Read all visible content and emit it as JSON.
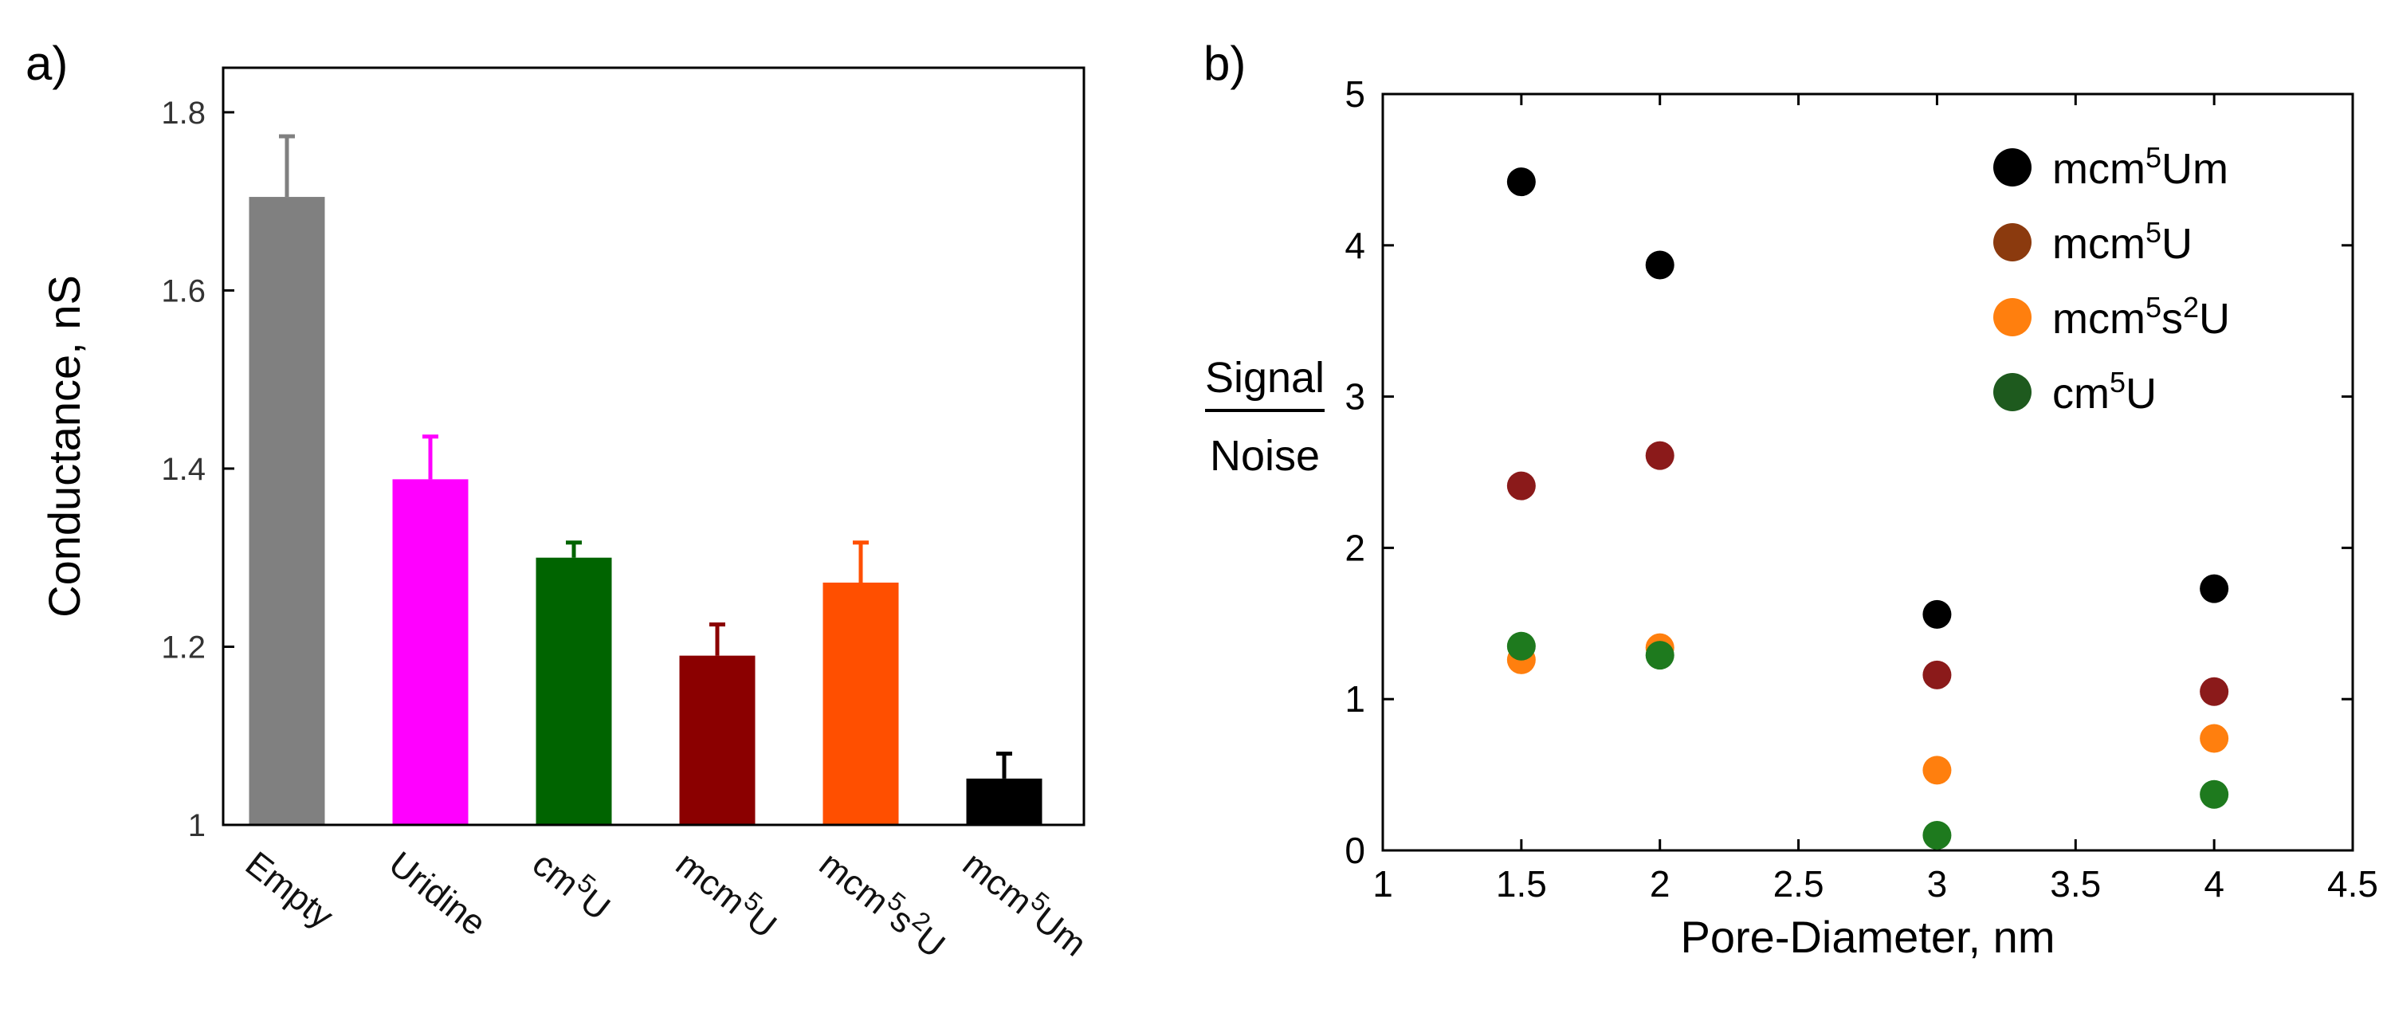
{
  "chart_data": [
    {
      "type": "bar",
      "panel_label": "a)",
      "title": "",
      "xlabel": "",
      "ylabel": "Conductance, nS",
      "ylim": [
        1.0,
        1.85
      ],
      "yticks": [
        {
          "value": 1.0,
          "label": "1"
        },
        {
          "value": 1.2,
          "label": "1.2"
        },
        {
          "value": 1.4,
          "label": "1.4"
        },
        {
          "value": 1.6,
          "label": "1.6"
        },
        {
          "value": 1.8,
          "label": "1.8"
        }
      ],
      "categories": [
        {
          "base": "Empty",
          "sup": "",
          "mid": "",
          "sup2": "",
          "tail": ""
        },
        {
          "base": "Uridine",
          "sup": "",
          "mid": "",
          "sup2": "",
          "tail": ""
        },
        {
          "base": "cm",
          "sup": "5",
          "mid": "U",
          "sup2": "",
          "tail": ""
        },
        {
          "base": "mcm",
          "sup": "5",
          "mid": "U",
          "sup2": "",
          "tail": ""
        },
        {
          "base": "mcm",
          "sup": "5",
          "mid": "s",
          "sup2": "2",
          "tail": "U"
        },
        {
          "base": "mcm",
          "sup": "5",
          "mid": "Um",
          "sup2": "",
          "tail": ""
        }
      ],
      "values": [
        1.705,
        1.388,
        1.3,
        1.19,
        1.272,
        1.052
      ],
      "errors": [
        0.068,
        0.048,
        0.017,
        0.035,
        0.045,
        0.028
      ],
      "colors": [
        "#808080",
        "#ff00ff",
        "#006400",
        "#8b0000",
        "#ff4f00",
        "#000000"
      ]
    },
    {
      "type": "scatter",
      "panel_label": "b)",
      "title": "",
      "xlabel": "Pore-Diameter, nm",
      "ylabel_top": "Signal",
      "ylabel_bottom": "Noise",
      "xlim": [
        1,
        4.5
      ],
      "ylim": [
        0,
        5
      ],
      "xticks": [
        {
          "value": 1,
          "label": "1"
        },
        {
          "value": 1.5,
          "label": "1.5"
        },
        {
          "value": 2,
          "label": "2"
        },
        {
          "value": 2.5,
          "label": "2.5"
        },
        {
          "value": 3,
          "label": "3"
        },
        {
          "value": 3.5,
          "label": "3.5"
        },
        {
          "value": 4,
          "label": "4"
        },
        {
          "value": 4.5,
          "label": "4.5"
        }
      ],
      "yticks": [
        {
          "value": 0,
          "label": "0"
        },
        {
          "value": 1,
          "label": "1"
        },
        {
          "value": 2,
          "label": "2"
        },
        {
          "value": 3,
          "label": "3"
        },
        {
          "value": 4,
          "label": "4"
        },
        {
          "value": 5,
          "label": "5"
        }
      ],
      "legend_position": "top-right",
      "series": [
        {
          "name": "mcm5Um",
          "legend_base": "mcm",
          "legend_sup": "5",
          "legend_mid": "Um",
          "legend_sup2": "",
          "legend_tail": "",
          "color": "#000000",
          "legend_color": "#000000",
          "x": [
            1.5,
            2,
            3,
            4
          ],
          "y": [
            4.42,
            3.87,
            1.56,
            1.73
          ]
        },
        {
          "name": "mcm5U",
          "legend_base": "mcm",
          "legend_sup": "5",
          "legend_mid": "U",
          "legend_sup2": "",
          "legend_tail": "",
          "color": "#8b1a1a",
          "legend_color": "#8b3a0e",
          "x": [
            1.5,
            2,
            3,
            4
          ],
          "y": [
            2.41,
            2.61,
            1.16,
            1.05
          ]
        },
        {
          "name": "mcm5s2U",
          "legend_base": "mcm",
          "legend_sup": "5",
          "legend_mid": "s",
          "legend_sup2": "2",
          "legend_tail": "U",
          "color": "#ff7f0e",
          "legend_color": "#ff7f0e",
          "x": [
            1.5,
            2,
            3,
            4
          ],
          "y": [
            1.26,
            1.34,
            0.53,
            0.74
          ]
        },
        {
          "name": "cm5U",
          "legend_base": "cm",
          "legend_sup": "5",
          "legend_mid": "U",
          "legend_sup2": "",
          "legend_tail": "",
          "color": "#1e7a1e",
          "legend_color": "#1e5a1e",
          "x": [
            1.5,
            2,
            3,
            4
          ],
          "y": [
            1.35,
            1.29,
            0.1,
            0.37
          ]
        }
      ]
    }
  ]
}
